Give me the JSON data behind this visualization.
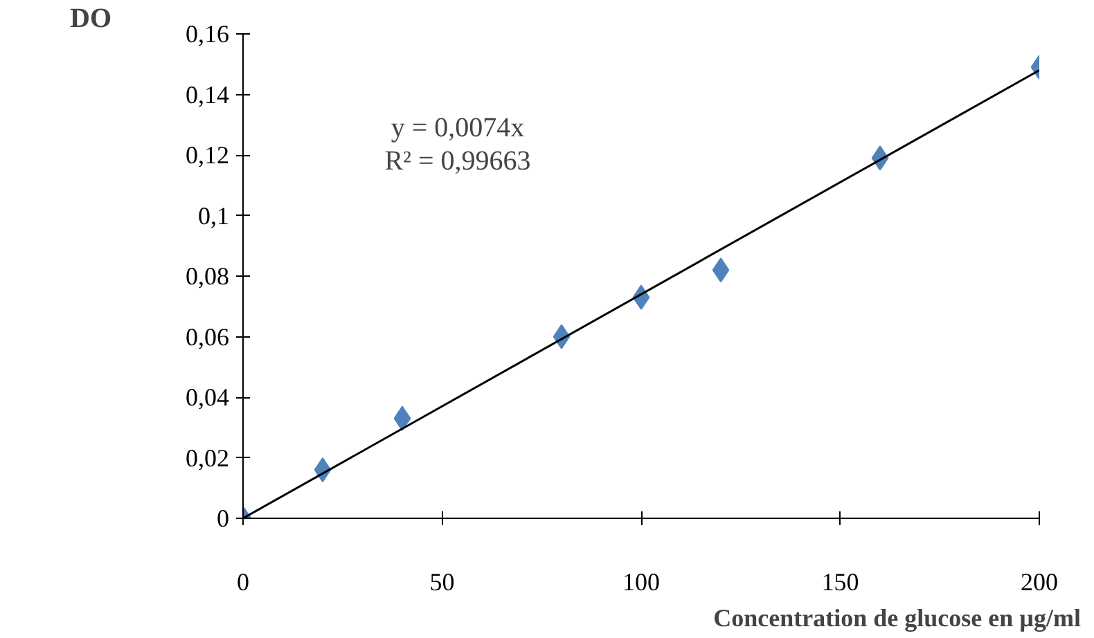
{
  "chart_data": {
    "type": "scatter",
    "xlabel": "Concentration de glucose en µg/ml",
    "ylabel": "DO",
    "annotations": [
      "y = 0,0074x",
      "R² = 0,99663"
    ],
    "x": [
      0,
      20,
      40,
      80,
      100,
      120,
      160,
      200
    ],
    "series": [
      {
        "color": "#4f81bd",
        "marker": "diamond",
        "values": [
          0,
          0.016,
          0.033,
          0.06,
          0.073,
          0.082,
          0.119,
          0.149
        ]
      },
      {
        "type": "line",
        "color": "#000000",
        "line_style": "solid",
        "x": [
          0,
          200
        ],
        "values": [
          0,
          0.148
        ]
      }
    ],
    "xlim": [
      0,
      200
    ],
    "ylim": [
      0,
      0.16
    ],
    "xticks": [
      0,
      50,
      100,
      150,
      200
    ],
    "yticks": [
      0,
      {
        "value": 0.02,
        "label": "0,02"
      },
      {
        "value": 0.04,
        "label": "0,04"
      },
      {
        "value": 0.06,
        "label": "0,06"
      },
      {
        "value": 0.08,
        "label": "0,08"
      },
      {
        "value": 0.1,
        "label": "0,1"
      },
      {
        "value": 0.12,
        "label": "0,12"
      },
      {
        "value": 0.14,
        "label": "0,14"
      },
      {
        "value": 0.16,
        "label": "0,16"
      }
    ],
    "grid": false
  }
}
